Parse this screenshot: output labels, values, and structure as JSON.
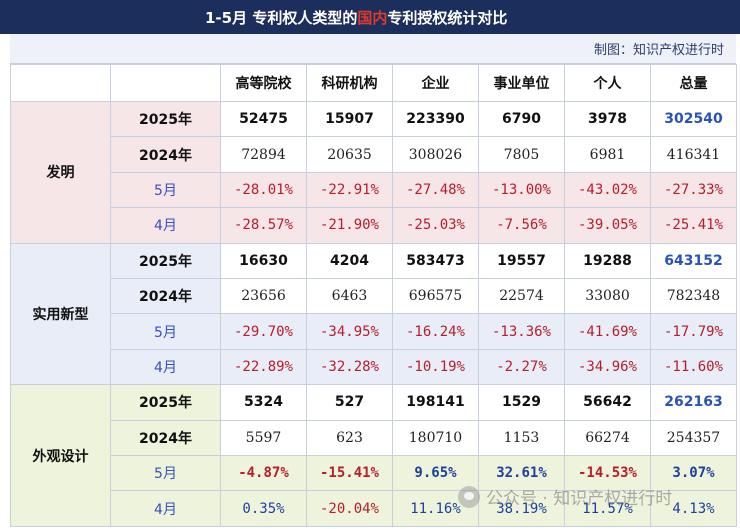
{
  "title": {
    "pre": "1-5月 专利权人类型的",
    "highlight": "国内",
    "post": "专利授权统计对比"
  },
  "credit": "制图：知识产权进行时",
  "columns": [
    "高等院校",
    "科研机构",
    "企业",
    "事业单位",
    "个人",
    "总量"
  ],
  "groups": [
    {
      "name": "发明",
      "rows": [
        {
          "label": "2025年",
          "values": [
            "52475",
            "15907",
            "223390",
            "6790",
            "3978",
            "302540"
          ]
        },
        {
          "label": "2024年",
          "values": [
            "72894",
            "20635",
            "308026",
            "7805",
            "6981",
            "416341"
          ]
        },
        {
          "label": "5月",
          "values": [
            "-28.01%",
            "-22.91%",
            "-27.48%",
            "-13.00%",
            "-43.02%",
            "-27.33%"
          ]
        },
        {
          "label": "4月",
          "values": [
            "-28.57%",
            "-21.90%",
            "-25.03%",
            "-7.56%",
            "-39.05%",
            "-25.41%"
          ]
        }
      ]
    },
    {
      "name": "实用新型",
      "rows": [
        {
          "label": "2025年",
          "values": [
            "16630",
            "4204",
            "583473",
            "19557",
            "19288",
            "643152"
          ]
        },
        {
          "label": "2024年",
          "values": [
            "23656",
            "6463",
            "696575",
            "22574",
            "33080",
            "782348"
          ]
        },
        {
          "label": "5月",
          "values": [
            "-29.70%",
            "-34.95%",
            "-16.24%",
            "-13.36%",
            "-41.69%",
            "-17.79%"
          ]
        },
        {
          "label": "4月",
          "values": [
            "-22.89%",
            "-32.28%",
            "-10.19%",
            "-2.27%",
            "-34.96%",
            "-11.60%"
          ]
        }
      ]
    },
    {
      "name": "外观设计",
      "rows": [
        {
          "label": "2025年",
          "values": [
            "5324",
            "527",
            "198141",
            "1529",
            "56642",
            "262163"
          ]
        },
        {
          "label": "2024年",
          "values": [
            "5597",
            "623",
            "180710",
            "1153",
            "66274",
            "254357"
          ]
        },
        {
          "label": "5月",
          "values": [
            "-4.87%",
            "-15.41%",
            "9.65%",
            "32.61%",
            "-14.53%",
            "3.07%"
          ]
        },
        {
          "label": "4月",
          "values": [
            "0.35%",
            "-20.04%",
            "11.16%",
            "38.19%",
            "11.57%",
            "4.13%"
          ]
        }
      ]
    }
  ],
  "watermark": "公众号 · 知识产权进行时",
  "colors": {
    "title_bg": "#1c2f5c",
    "negative": "#b81d2b",
    "positive": "#1d3fa0",
    "invention_bg": "#f6e6e8",
    "utility_bg": "#e8edf7",
    "design_bg": "#eef4dc"
  }
}
